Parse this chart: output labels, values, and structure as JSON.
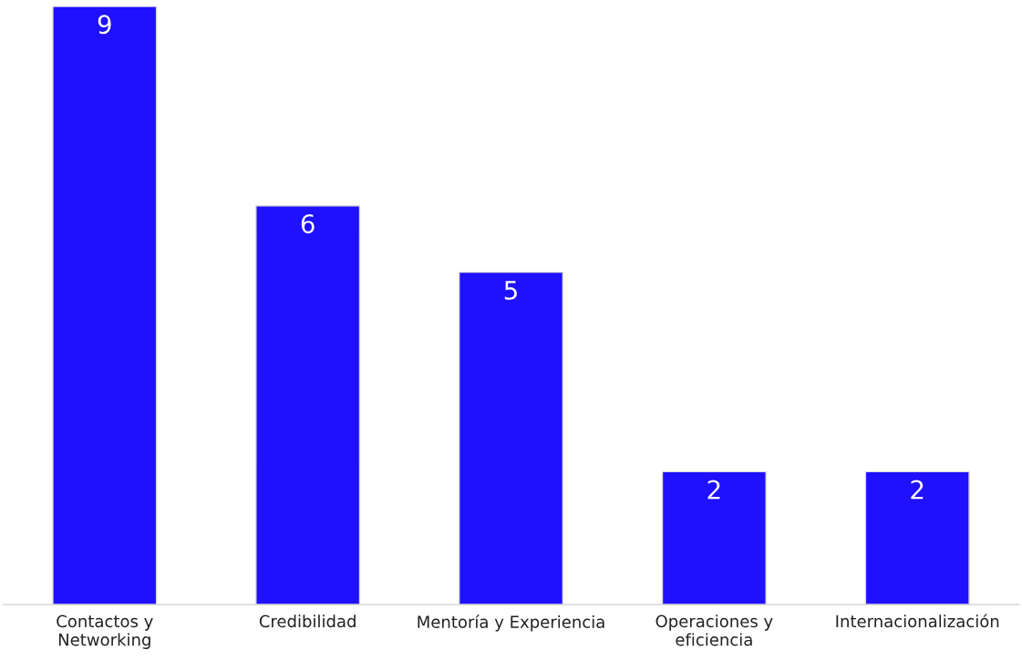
{
  "chart_data": {
    "type": "bar",
    "categories": [
      "Contactos y\nNetworking",
      "Credibilidad",
      "Mentoría y Experiencia",
      "Operaciones y\neficiencia",
      "Internacionalización"
    ],
    "values": [
      9,
      6,
      5,
      2,
      2
    ],
    "color": "#1f10fe",
    "ylim": [
      0,
      9
    ],
    "data_labels": true,
    "grid": false,
    "legend": false
  }
}
